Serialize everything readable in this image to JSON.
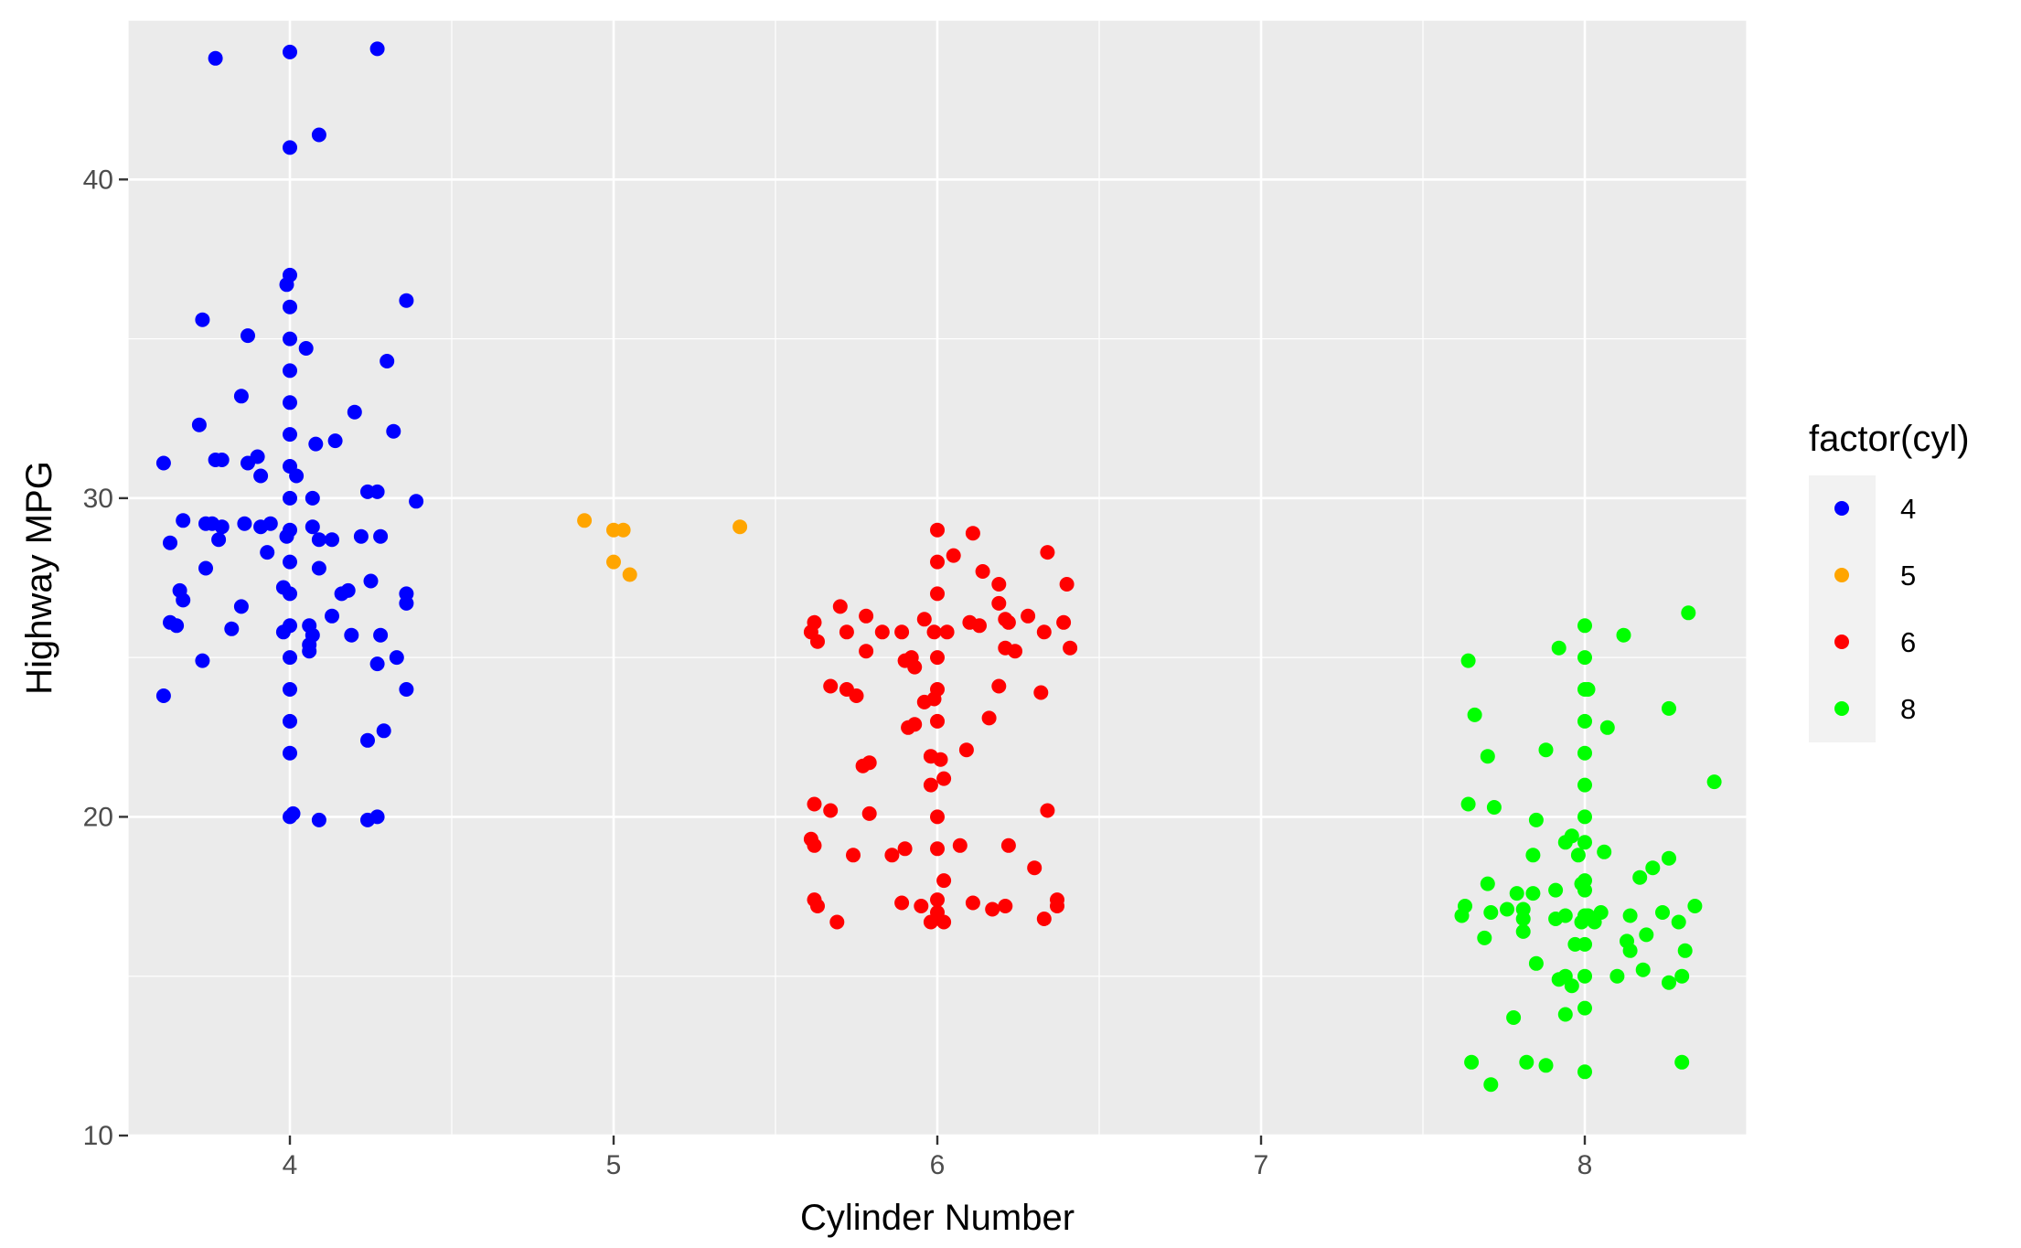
{
  "chart_data": {
    "type": "scatter",
    "title": "",
    "xlabel": "Cylinder Number",
    "ylabel": "Highway MPG",
    "xlim": [
      3.5,
      8.5
    ],
    "ylim": [
      10,
      45
    ],
    "x_ticks": [
      4,
      5,
      6,
      7,
      8
    ],
    "y_ticks": [
      10,
      20,
      30,
      40
    ],
    "grid": true,
    "legend": {
      "title": "factor(cyl)",
      "position": "right"
    },
    "series": [
      {
        "name": "4",
        "color": "#0000ff",
        "points": [
          [
            3.77,
            43.8
          ],
          [
            4.0,
            44.0
          ],
          [
            4.27,
            44.1
          ],
          [
            4.0,
            41.0
          ],
          [
            4.09,
            41.4
          ],
          [
            4.0,
            37.0
          ],
          [
            3.99,
            36.7
          ],
          [
            4.0,
            36.0
          ],
          [
            4.36,
            36.2
          ],
          [
            3.73,
            35.6
          ],
          [
            3.87,
            35.1
          ],
          [
            4.0,
            35.0
          ],
          [
            4.05,
            34.7
          ],
          [
            4.0,
            34.0
          ],
          [
            4.3,
            34.3
          ],
          [
            3.85,
            33.2
          ],
          [
            4.0,
            33.0
          ],
          [
            4.2,
            32.7
          ],
          [
            3.72,
            32.3
          ],
          [
            4.32,
            32.1
          ],
          [
            4.0,
            32.0
          ],
          [
            4.08,
            31.7
          ],
          [
            4.14,
            31.8
          ],
          [
            3.61,
            31.1
          ],
          [
            3.77,
            31.2
          ],
          [
            3.79,
            31.2
          ],
          [
            3.87,
            31.1
          ],
          [
            3.9,
            31.3
          ],
          [
            4.0,
            31.0
          ],
          [
            4.02,
            30.7
          ],
          [
            3.91,
            30.7
          ],
          [
            4.0,
            30.0
          ],
          [
            4.07,
            30.0
          ],
          [
            4.24,
            30.2
          ],
          [
            4.27,
            30.2
          ],
          [
            4.39,
            29.9
          ],
          [
            3.67,
            29.3
          ],
          [
            3.74,
            29.2
          ],
          [
            3.76,
            29.2
          ],
          [
            3.79,
            29.1
          ],
          [
            3.86,
            29.2
          ],
          [
            3.91,
            29.1
          ],
          [
            3.94,
            29.2
          ],
          [
            4.0,
            29.0
          ],
          [
            3.99,
            28.8
          ],
          [
            4.07,
            29.1
          ],
          [
            4.09,
            28.7
          ],
          [
            4.13,
            28.7
          ],
          [
            4.22,
            28.8
          ],
          [
            4.28,
            28.8
          ],
          [
            3.63,
            28.6
          ],
          [
            3.78,
            28.7
          ],
          [
            3.93,
            28.3
          ],
          [
            4.0,
            28.0
          ],
          [
            3.74,
            27.8
          ],
          [
            4.09,
            27.8
          ],
          [
            3.98,
            27.2
          ],
          [
            4.0,
            27.0
          ],
          [
            4.16,
            27.0
          ],
          [
            4.18,
            27.1
          ],
          [
            4.25,
            27.4
          ],
          [
            4.36,
            27.0
          ],
          [
            4.36,
            26.7
          ],
          [
            3.66,
            27.1
          ],
          [
            3.67,
            26.8
          ],
          [
            3.85,
            26.6
          ],
          [
            4.13,
            26.3
          ],
          [
            3.63,
            26.1
          ],
          [
            3.65,
            26.0
          ],
          [
            3.82,
            25.9
          ],
          [
            3.98,
            25.8
          ],
          [
            4.0,
            26.0
          ],
          [
            4.06,
            26.0
          ],
          [
            4.07,
            25.7
          ],
          [
            4.19,
            25.7
          ],
          [
            4.28,
            25.7
          ],
          [
            4.06,
            25.4
          ],
          [
            4.06,
            25.2
          ],
          [
            4.0,
            25.0
          ],
          [
            4.27,
            24.8
          ],
          [
            4.33,
            25.0
          ],
          [
            3.73,
            24.9
          ],
          [
            4.36,
            24.0
          ],
          [
            4.0,
            24.0
          ],
          [
            3.61,
            23.8
          ],
          [
            4.0,
            23.0
          ],
          [
            4.29,
            22.7
          ],
          [
            4.24,
            22.4
          ],
          [
            4.0,
            22.0
          ],
          [
            4.0,
            20.0
          ],
          [
            4.01,
            20.1
          ],
          [
            4.09,
            19.9
          ],
          [
            4.24,
            19.9
          ],
          [
            4.27,
            20.0
          ]
        ]
      },
      {
        "name": "5",
        "color": "#ffa500",
        "points": [
          [
            4.91,
            29.3
          ],
          [
            5.0,
            29.0
          ],
          [
            5.03,
            29.0
          ],
          [
            5.39,
            29.1
          ],
          [
            5.0,
            28.0
          ],
          [
            5.05,
            27.6
          ]
        ]
      },
      {
        "name": "6",
        "color": "#ff0000",
        "points": [
          [
            6.0,
            29.0
          ],
          [
            6.11,
            28.9
          ],
          [
            6.34,
            28.3
          ],
          [
            6.05,
            28.2
          ],
          [
            6.0,
            28.0
          ],
          [
            6.14,
            27.7
          ],
          [
            6.19,
            27.3
          ],
          [
            6.4,
            27.3
          ],
          [
            6.0,
            27.0
          ],
          [
            6.19,
            26.7
          ],
          [
            5.7,
            26.6
          ],
          [
            5.78,
            26.3
          ],
          [
            5.62,
            26.1
          ],
          [
            5.61,
            25.8
          ],
          [
            5.72,
            25.8
          ],
          [
            5.83,
            25.8
          ],
          [
            5.89,
            25.8
          ],
          [
            5.96,
            26.2
          ],
          [
            5.99,
            25.8
          ],
          [
            6.03,
            25.8
          ],
          [
            6.1,
            26.1
          ],
          [
            6.13,
            26.0
          ],
          [
            6.21,
            26.2
          ],
          [
            6.22,
            26.1
          ],
          [
            6.28,
            26.3
          ],
          [
            6.39,
            26.1
          ],
          [
            6.33,
            25.8
          ],
          [
            6.21,
            25.3
          ],
          [
            6.24,
            25.2
          ],
          [
            6.41,
            25.3
          ],
          [
            5.63,
            25.5
          ],
          [
            5.78,
            25.2
          ],
          [
            5.9,
            24.9
          ],
          [
            5.92,
            25.0
          ],
          [
            5.93,
            24.7
          ],
          [
            6.0,
            25.0
          ],
          [
            5.67,
            24.1
          ],
          [
            5.72,
            24.0
          ],
          [
            5.75,
            23.8
          ],
          [
            6.0,
            24.0
          ],
          [
            5.99,
            23.7
          ],
          [
            5.96,
            23.6
          ],
          [
            6.19,
            24.1
          ],
          [
            6.32,
            23.9
          ],
          [
            5.91,
            22.8
          ],
          [
            5.93,
            22.9
          ],
          [
            6.0,
            23.0
          ],
          [
            6.16,
            23.1
          ],
          [
            6.09,
            22.1
          ],
          [
            5.98,
            21.9
          ],
          [
            6.01,
            21.8
          ],
          [
            5.77,
            21.6
          ],
          [
            5.79,
            21.7
          ],
          [
            6.02,
            21.2
          ],
          [
            5.98,
            21.0
          ],
          [
            6.0,
            20.0
          ],
          [
            5.62,
            20.4
          ],
          [
            5.67,
            20.2
          ],
          [
            5.79,
            20.1
          ],
          [
            6.34,
            20.2
          ],
          [
            5.61,
            19.3
          ],
          [
            5.62,
            19.1
          ],
          [
            5.74,
            18.8
          ],
          [
            5.86,
            18.8
          ],
          [
            5.9,
            19.0
          ],
          [
            6.0,
            19.0
          ],
          [
            6.07,
            19.1
          ],
          [
            6.22,
            19.1
          ],
          [
            6.3,
            18.4
          ],
          [
            6.02,
            18.0
          ],
          [
            6.0,
            17.4
          ],
          [
            5.62,
            17.4
          ],
          [
            5.63,
            17.2
          ],
          [
            5.89,
            17.3
          ],
          [
            5.95,
            17.2
          ],
          [
            6.11,
            17.3
          ],
          [
            6.17,
            17.1
          ],
          [
            6.21,
            17.2
          ],
          [
            6.37,
            17.4
          ],
          [
            6.37,
            17.2
          ],
          [
            6.0,
            17.0
          ],
          [
            5.69,
            16.7
          ],
          [
            5.98,
            16.7
          ],
          [
            6.02,
            16.7
          ],
          [
            6.33,
            16.8
          ]
        ]
      },
      {
        "name": "8",
        "color": "#00ff00",
        "points": [
          [
            8.0,
            26.0
          ],
          [
            8.32,
            26.4
          ],
          [
            8.12,
            25.7
          ],
          [
            7.92,
            25.3
          ],
          [
            8.0,
            25.0
          ],
          [
            7.64,
            24.9
          ],
          [
            8.0,
            24.0
          ],
          [
            8.01,
            24.0
          ],
          [
            8.26,
            23.4
          ],
          [
            7.66,
            23.2
          ],
          [
            8.0,
            23.0
          ],
          [
            8.07,
            22.8
          ],
          [
            7.88,
            22.1
          ],
          [
            7.7,
            21.9
          ],
          [
            8.0,
            22.0
          ],
          [
            8.4,
            21.1
          ],
          [
            8.0,
            21.0
          ],
          [
            7.64,
            20.4
          ],
          [
            7.72,
            20.3
          ],
          [
            8.0,
            20.0
          ],
          [
            7.85,
            19.9
          ],
          [
            7.96,
            19.4
          ],
          [
            7.94,
            19.2
          ],
          [
            8.0,
            19.2
          ],
          [
            7.98,
            18.8
          ],
          [
            8.06,
            18.9
          ],
          [
            8.21,
            18.4
          ],
          [
            8.26,
            18.7
          ],
          [
            7.84,
            18.8
          ],
          [
            8.0,
            18.0
          ],
          [
            8.17,
            18.1
          ],
          [
            7.7,
            17.9
          ],
          [
            7.79,
            17.6
          ],
          [
            7.84,
            17.6
          ],
          [
            7.91,
            17.7
          ],
          [
            8.0,
            17.7
          ],
          [
            7.99,
            17.9
          ],
          [
            7.63,
            17.2
          ],
          [
            7.71,
            17.0
          ],
          [
            7.76,
            17.1
          ],
          [
            7.81,
            17.1
          ],
          [
            7.94,
            16.9
          ],
          [
            8.01,
            16.9
          ],
          [
            8.05,
            17.0
          ],
          [
            8.14,
            16.9
          ],
          [
            8.24,
            17.0
          ],
          [
            8.34,
            17.2
          ],
          [
            7.62,
            16.9
          ],
          [
            7.81,
            16.8
          ],
          [
            7.91,
            16.8
          ],
          [
            7.99,
            16.7
          ],
          [
            8.0,
            16.9
          ],
          [
            8.03,
            16.7
          ],
          [
            8.29,
            16.7
          ],
          [
            7.69,
            16.2
          ],
          [
            7.81,
            16.4
          ],
          [
            8.13,
            16.1
          ],
          [
            8.19,
            16.3
          ],
          [
            7.97,
            16.0
          ],
          [
            8.0,
            16.0
          ],
          [
            8.14,
            15.8
          ],
          [
            8.31,
            15.8
          ],
          [
            7.85,
            15.4
          ],
          [
            7.92,
            14.9
          ],
          [
            7.94,
            15.0
          ],
          [
            8.0,
            15.0
          ],
          [
            8.1,
            15.0
          ],
          [
            8.18,
            15.2
          ],
          [
            8.26,
            14.8
          ],
          [
            8.3,
            15.0
          ],
          [
            7.96,
            14.7
          ],
          [
            8.0,
            14.0
          ],
          [
            7.94,
            13.8
          ],
          [
            7.78,
            13.7
          ],
          [
            7.65,
            12.3
          ],
          [
            7.82,
            12.3
          ],
          [
            7.88,
            12.2
          ],
          [
            8.0,
            12.0
          ],
          [
            8.3,
            12.3
          ],
          [
            7.71,
            11.6
          ]
        ]
      }
    ]
  }
}
